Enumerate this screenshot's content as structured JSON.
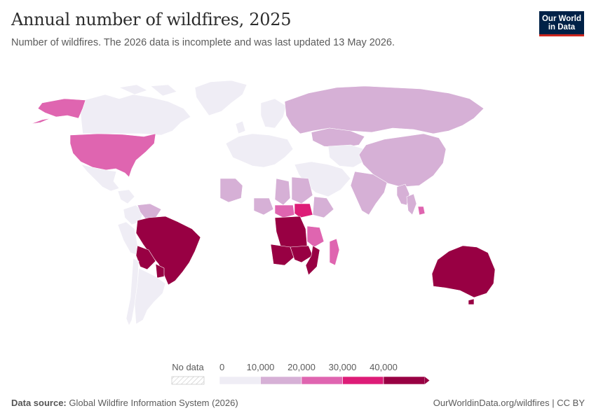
{
  "header": {
    "title": "Annual number of wildfires, 2025",
    "subtitle": "Number of wildfires. The 2026 data is incomplete and was last updated 13 May 2026."
  },
  "logo": {
    "line1": "Our World",
    "line2": "in Data",
    "bg": "#002147",
    "accent": "#ce261e"
  },
  "legend": {
    "no_data_label": "No data",
    "ticks": [
      "0",
      "10,000",
      "20,000",
      "30,000",
      "40,000"
    ],
    "bins": [
      {
        "min": 0,
        "max": 10000,
        "color": "#efedf5"
      },
      {
        "min": 10000,
        "max": 20000,
        "color": "#d6b0d6"
      },
      {
        "min": 20000,
        "max": 30000,
        "color": "#df65b0"
      },
      {
        "min": 30000,
        "max": 40000,
        "color": "#dd1c77"
      },
      {
        "min": 40000,
        "max": null,
        "color": "#980043"
      }
    ]
  },
  "map": {
    "type": "choropleth",
    "year": 2025,
    "country_bins": {
      "United States": 2,
      "Alaska (United States)": 2,
      "Canada": 0,
      "Greenland": 0,
      "Mexico": 0,
      "Brazil": 4,
      "Bolivia": 4,
      "Paraguay": 4,
      "Colombia": 0,
      "Venezuela": 1,
      "Peru": 0,
      "Argentina": 0,
      "Chile": 0,
      "Russia": 1,
      "Kazakhstan": 1,
      "China": 1,
      "India": 1,
      "Myanmar": 1,
      "Thailand": 1,
      "Cambodia": 2,
      "Australia": 4,
      "Angola": 4,
      "Democratic Republic of Congo": 4,
      "Zambia": 4,
      "Mozambique": 4,
      "Tanzania": 2,
      "Central African Republic": 2,
      "South Sudan": 3,
      "Mali": 1,
      "Chad": 1,
      "Sudan": 1,
      "Ethiopia": 1,
      "Nigeria": 1,
      "Madagascar": 2,
      "Europe": 0,
      "Middle East": 0
    }
  },
  "footer": {
    "source_label": "Data source:",
    "source_text": "Global Wildfire Information System (2026)",
    "url_text": "OurWorldinData.org/wildfires | CC BY"
  }
}
